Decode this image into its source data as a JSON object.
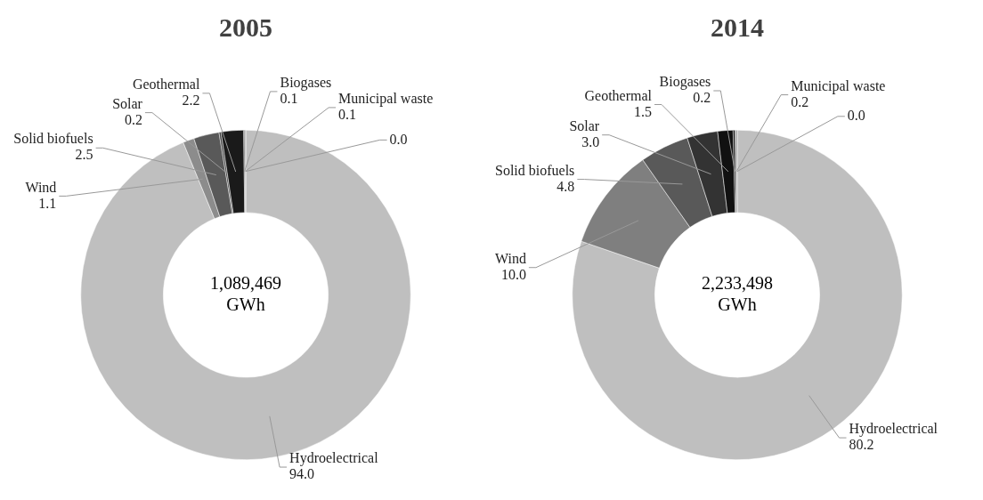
{
  "chart_data": [
    {
      "type": "donut",
      "title": "2005",
      "categories": [
        "Hydroelectrical",
        "Wind",
        "Solid biofuels",
        "Solar",
        "Geothermal",
        "Biogases",
        "Municipal waste",
        null
      ],
      "values": [
        94.0,
        1.1,
        2.5,
        0.2,
        2.2,
        0.1,
        0.1,
        0.0
      ],
      "value_labels": [
        "94.0",
        "1.1",
        "2.5",
        "0.2",
        "2.2",
        "0.1",
        "0.1",
        "0.0"
      ],
      "colors": [
        "#bfbfbf",
        "#8c8c8c",
        "#595959",
        "#404040",
        "#1a1a1a",
        "#0d0d0d",
        "#a6a6a6",
        "#d9d9d9"
      ],
      "annotations": [
        "1,089,469 GWh"
      ]
    },
    {
      "type": "donut",
      "title": "2014",
      "categories": [
        "Hydroelectrical",
        "Wind",
        "Solid biofuels",
        "Solar",
        "Geothermal",
        "Biogases",
        "Municipal waste",
        null
      ],
      "values": [
        80.2,
        10.0,
        4.8,
        3.0,
        1.5,
        0.2,
        0.2,
        0.0
      ],
      "value_labels": [
        "80.2",
        "10.0",
        "4.8",
        "3.0",
        "1.5",
        "0.2",
        "0.2",
        "0.0"
      ],
      "colors": [
        "#bfbfbf",
        "#7f7f7f",
        "#595959",
        "#333333",
        "#111111",
        "#0d0d0d",
        "#a6a6a6",
        "#d9d9d9"
      ],
      "annotations": [
        "2,233,498 GWh"
      ]
    }
  ]
}
